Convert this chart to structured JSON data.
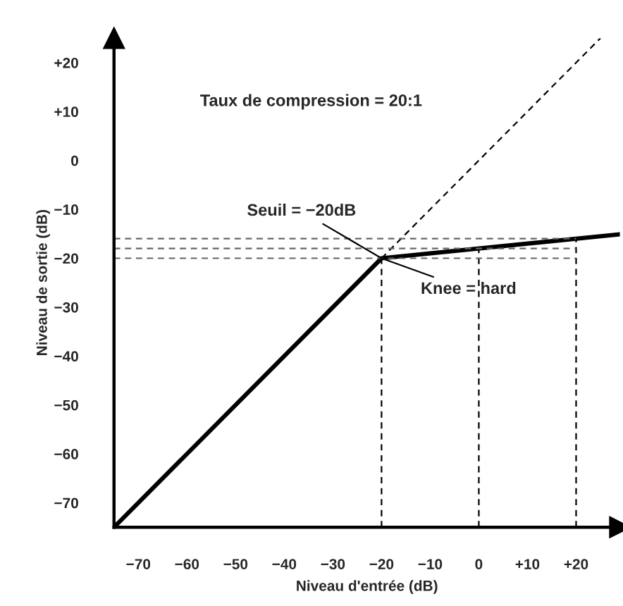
{
  "chart_data": {
    "type": "line",
    "xlabel": "Niveau d'entrée (dB)",
    "ylabel": "Niveau de sortie (dB)",
    "annotations": [
      "Taux de compression = 20:1",
      {
        "text": "Seuil = −20dB",
        "x": -20,
        "y": -20
      },
      {
        "text": "Knee = hard",
        "x": -20,
        "y": -20
      }
    ],
    "series": [
      {
        "color": "#000000",
        "line_style": "solid",
        "x": [
          -75,
          -20,
          29
        ],
        "values": [
          -75,
          -20,
          -15.1
        ]
      },
      {
        "color": "#000000",
        "line_style": "dashed",
        "x": [
          -20,
          25
        ],
        "values": [
          -20,
          25
        ]
      },
      {
        "color": "#000000",
        "line_style": "dashed",
        "x": [
          -20,
          -20
        ],
        "values": [
          -75,
          -20
        ]
      },
      {
        "color": "#000000",
        "line_style": "dashed",
        "x": [
          0,
          0
        ],
        "values": [
          -75,
          -18
        ]
      },
      {
        "color": "#000000",
        "line_style": "dashed",
        "x": [
          20,
          20
        ],
        "values": [
          -75,
          -16
        ]
      },
      {
        "color": "#666666",
        "line_style": "dashed",
        "x": [
          -75,
          20
        ],
        "values": [
          -20,
          -20
        ]
      },
      {
        "color": "#666666",
        "line_style": "dashed",
        "x": [
          -75,
          20
        ],
        "values": [
          -18,
          -18
        ]
      },
      {
        "color": "#666666",
        "line_style": "dashed",
        "x": [
          -75,
          20
        ],
        "values": [
          -16,
          -16
        ]
      }
    ],
    "xlim": [
      -75,
      29
    ],
    "ylim": [
      -75,
      25
    ],
    "xticks": [
      {
        "value": -70,
        "label": "−70"
      },
      {
        "value": -60,
        "label": "−60"
      },
      {
        "value": -50,
        "label": "−50"
      },
      {
        "value": -40,
        "label": "−40"
      },
      {
        "value": -30,
        "label": "−30"
      },
      {
        "value": -20,
        "label": "−20"
      },
      {
        "value": -10,
        "label": "−10"
      },
      0,
      {
        "value": 10,
        "label": "+10"
      },
      {
        "value": 20,
        "label": "+20"
      }
    ],
    "yticks": [
      {
        "value": -70,
        "label": "−70"
      },
      {
        "value": -60,
        "label": "−60"
      },
      {
        "value": -50,
        "label": "−50"
      },
      {
        "value": -40,
        "label": "−40"
      },
      {
        "value": -30,
        "label": "−30"
      },
      {
        "value": -20,
        "label": "−20"
      },
      {
        "value": -10,
        "label": "−10"
      },
      0,
      {
        "value": 10,
        "label": "+10"
      },
      {
        "value": 20,
        "label": "+20"
      }
    ]
  }
}
